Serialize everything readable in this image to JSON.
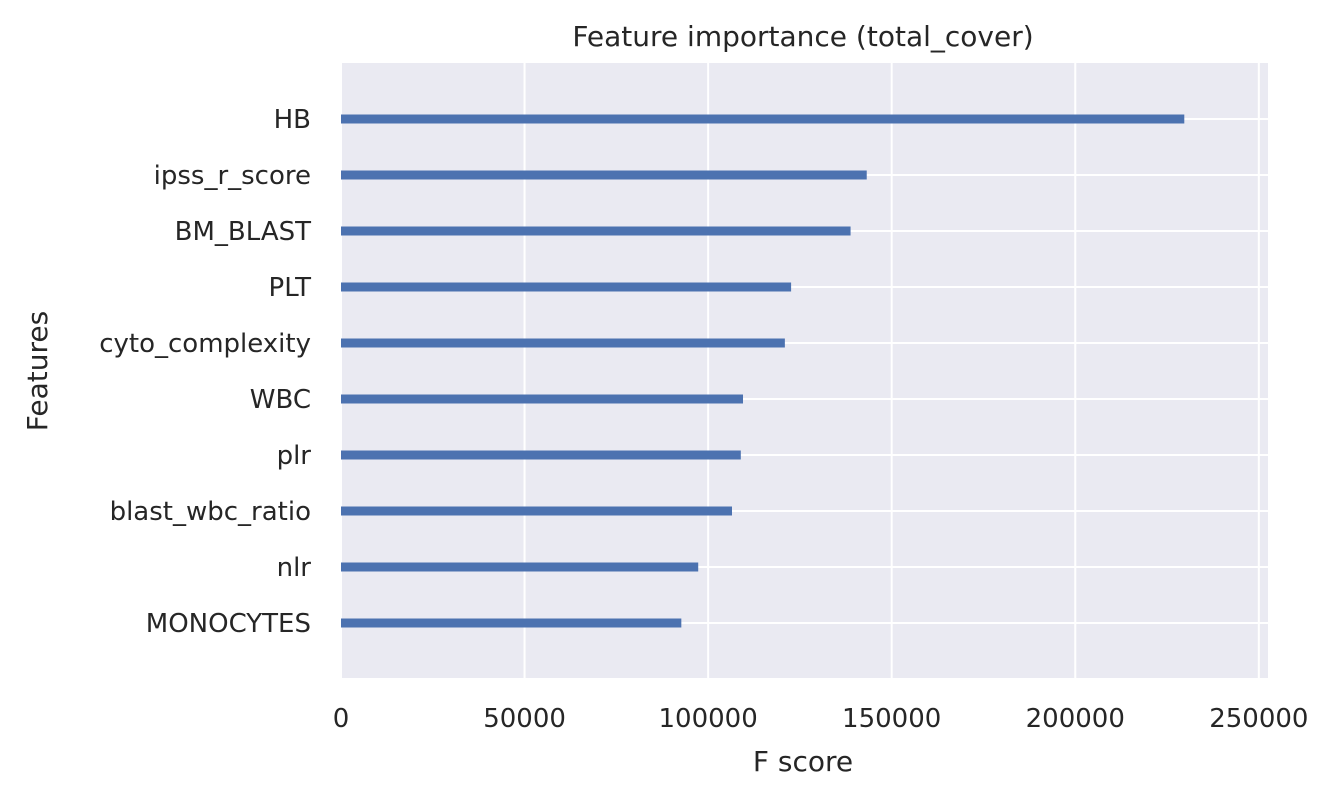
{
  "chart_data": {
    "type": "bar",
    "orientation": "horizontal",
    "title": "Feature importance (total_cover)",
    "xlabel": "F score",
    "ylabel": "Features",
    "categories": [
      "HB",
      "ipss_r_score",
      "BM_BLAST",
      "PLT",
      "cyto_complexity",
      "WBC",
      "plr",
      "blast_wbc_ratio",
      "nlr",
      "MONOCYTES"
    ],
    "values": [
      229700,
      143200,
      138800,
      122600,
      120900,
      109500,
      108900,
      106500,
      97300,
      92700
    ],
    "xlim": [
      0,
      252500
    ],
    "xticks": [
      0,
      50000,
      100000,
      150000,
      200000,
      250000
    ],
    "xtick_labels": [
      "0",
      "50000",
      "100000",
      "150000",
      "200000",
      "250000"
    ],
    "grid": true,
    "colors": {
      "bar": "#4c72b0",
      "plot_background": "#eaeaf2",
      "grid": "#ffffff",
      "text": "#262626"
    }
  }
}
